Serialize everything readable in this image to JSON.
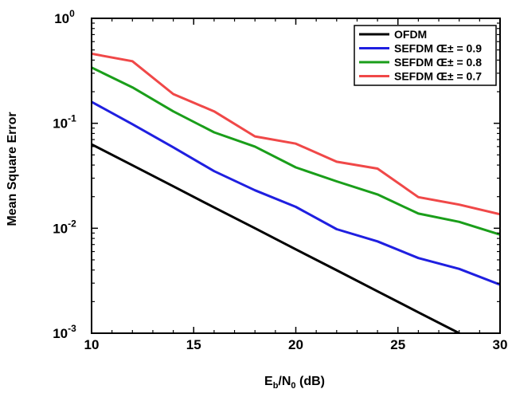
{
  "chart_data": {
    "type": "line",
    "title": "",
    "xlabel": "E_b/N_0 (dB)",
    "xlabel_parts": {
      "main1": "E",
      "sub1": "b",
      "main2": "/N",
      "sub2": "0",
      "tail": " (dB)"
    },
    "ylabel": "Mean Square Error",
    "xlim": [
      10,
      30
    ],
    "ylim": [
      0.001,
      1
    ],
    "yscale": "log",
    "grid": false,
    "legend_position": "top-right",
    "x_ticks": [
      10,
      15,
      20,
      25,
      30
    ],
    "x_tick_labels": [
      "10",
      "15",
      "20",
      "25",
      "30"
    ],
    "y_ticks": [
      {
        "value": 1,
        "base": "10",
        "exp": "0"
      },
      {
        "value": 0.1,
        "base": "10",
        "exp": "-1"
      },
      {
        "value": 0.01,
        "base": "10",
        "exp": "-2"
      },
      {
        "value": 0.001,
        "base": "10",
        "exp": "-3"
      }
    ],
    "series": [
      {
        "name": "OFDM",
        "color": "#000000",
        "x": [
          10,
          12,
          14,
          16,
          18,
          20,
          22,
          24,
          26,
          28
        ],
        "y": [
          0.063,
          0.0398,
          0.0251,
          0.0158,
          0.01,
          0.0063,
          0.00398,
          0.00251,
          0.00158,
          0.001
        ]
      },
      {
        "name": "SEFDM Œ± = 0.9",
        "color": "#1f1fe0",
        "x": [
          10,
          12,
          14,
          16,
          18,
          20,
          22,
          24,
          26,
          28,
          30
        ],
        "y": [
          0.16,
          0.098,
          0.059,
          0.035,
          0.023,
          0.016,
          0.0098,
          0.0075,
          0.0052,
          0.0041,
          0.0029
        ]
      },
      {
        "name": "SEFDM Œ± = 0.8",
        "color": "#1a9e1a",
        "x": [
          10,
          12,
          14,
          16,
          18,
          20,
          22,
          24,
          26,
          28,
          30
        ],
        "y": [
          0.34,
          0.22,
          0.13,
          0.082,
          0.06,
          0.038,
          0.028,
          0.021,
          0.0138,
          0.0115,
          0.0087
        ]
      },
      {
        "name": "SEFDM Œ± = 0.7",
        "color": "#f04848",
        "x": [
          10,
          12,
          14,
          16,
          18,
          20,
          22,
          24,
          26,
          28,
          30
        ],
        "y": [
          0.46,
          0.39,
          0.19,
          0.13,
          0.075,
          0.064,
          0.043,
          0.037,
          0.0198,
          0.0168,
          0.0136
        ]
      }
    ]
  }
}
